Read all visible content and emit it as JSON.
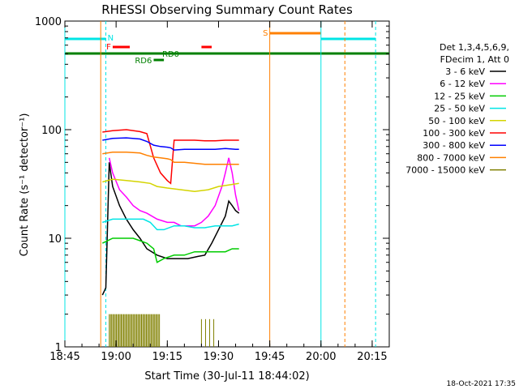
{
  "chart_data": {
    "type": "line",
    "title": "RHESSI Observing Summary Count Rates",
    "xlabel": "Start Time (30-Jul-11 18:44:02)",
    "ylabel": "Count Rate (s⁻¹ detector⁻¹)",
    "yscale": "log",
    "ylim": [
      1,
      1000
    ],
    "xlim_minutes": [
      0,
      95
    ],
    "x_ticks": [
      {
        "label": "18:45",
        "min": 0
      },
      {
        "label": "19:00",
        "min": 15
      },
      {
        "label": "19:15",
        "min": 30
      },
      {
        "label": "19:30",
        "min": 45
      },
      {
        "label": "19:45",
        "min": 60
      },
      {
        "label": "20:00",
        "min": 75
      },
      {
        "label": "20:15",
        "min": 90
      }
    ],
    "y_ticks": [
      {
        "label": "1",
        "value": 1
      },
      {
        "label": "10",
        "value": 10
      },
      {
        "label": "100",
        "value": 100
      },
      {
        "label": "1000",
        "value": 1000
      }
    ],
    "legend": {
      "placement": "right",
      "header": [
        "Det 1,3,4,5,6,9,",
        "FDecim 1, Att 0"
      ]
    },
    "series": [
      {
        "name": "3 - 6 keV",
        "color": "#000000",
        "points": [
          [
            11,
            3
          ],
          [
            12,
            3.5
          ],
          [
            13,
            50
          ],
          [
            14,
            30
          ],
          [
            16,
            20
          ],
          [
            18,
            15
          ],
          [
            20,
            12
          ],
          [
            22,
            10
          ],
          [
            24,
            8
          ],
          [
            27,
            7
          ],
          [
            30,
            6.5
          ],
          [
            33,
            6.5
          ],
          [
            36,
            6.5
          ],
          [
            39,
            6.8
          ],
          [
            41,
            7
          ],
          [
            43,
            9
          ],
          [
            45,
            12
          ],
          [
            47,
            16
          ],
          [
            48,
            22
          ],
          [
            49,
            20
          ],
          [
            50,
            18
          ],
          [
            51,
            17
          ]
        ]
      },
      {
        "name": "6 - 12 keV",
        "color": "#ff00ff",
        "points": [
          [
            13,
            55
          ],
          [
            14,
            40
          ],
          [
            16,
            28
          ],
          [
            18,
            24
          ],
          [
            20,
            20
          ],
          [
            22,
            18
          ],
          [
            24,
            17
          ],
          [
            27,
            15
          ],
          [
            30,
            14
          ],
          [
            32,
            14
          ],
          [
            34,
            13
          ],
          [
            36,
            13
          ],
          [
            38,
            13
          ],
          [
            40,
            14
          ],
          [
            42,
            16
          ],
          [
            44,
            20
          ],
          [
            46,
            30
          ],
          [
            47,
            40
          ],
          [
            48,
            55
          ],
          [
            49,
            40
          ],
          [
            50,
            25
          ],
          [
            51,
            18
          ]
        ]
      },
      {
        "name": "12 - 25 keV",
        "color": "#00cc00",
        "points": [
          [
            11,
            9
          ],
          [
            14,
            10
          ],
          [
            17,
            10
          ],
          [
            20,
            10
          ],
          [
            22,
            9.5
          ],
          [
            24,
            9
          ],
          [
            26,
            8
          ],
          [
            27,
            6
          ],
          [
            29,
            6.5
          ],
          [
            32,
            7
          ],
          [
            35,
            7
          ],
          [
            38,
            7.5
          ],
          [
            41,
            7.5
          ],
          [
            44,
            7.5
          ],
          [
            47,
            7.5
          ],
          [
            49,
            8
          ],
          [
            51,
            8
          ]
        ]
      },
      {
        "name": "25 - 50 keV",
        "color": "#00e5e5",
        "points": [
          [
            11,
            14
          ],
          [
            14,
            15
          ],
          [
            17,
            15
          ],
          [
            20,
            15
          ],
          [
            23,
            15
          ],
          [
            25,
            14
          ],
          [
            27,
            12
          ],
          [
            29,
            12
          ],
          [
            32,
            13
          ],
          [
            35,
            13
          ],
          [
            38,
            12.5
          ],
          [
            41,
            12.5
          ],
          [
            44,
            13
          ],
          [
            47,
            13
          ],
          [
            49,
            13
          ],
          [
            51,
            13.5
          ]
        ]
      },
      {
        "name": "50 - 100 keV",
        "color": "#d4d400",
        "points": [
          [
            11,
            33
          ],
          [
            14,
            35
          ],
          [
            18,
            34
          ],
          [
            22,
            33
          ],
          [
            25,
            32
          ],
          [
            27,
            30
          ],
          [
            30,
            29
          ],
          [
            34,
            28
          ],
          [
            38,
            27
          ],
          [
            42,
            28
          ],
          [
            45,
            30
          ],
          [
            48,
            31
          ],
          [
            51,
            32
          ]
        ]
      },
      {
        "name": "100 - 300 keV",
        "color": "#ff0000",
        "points": [
          [
            11,
            95
          ],
          [
            14,
            98
          ],
          [
            18,
            100
          ],
          [
            22,
            96
          ],
          [
            24,
            92
          ],
          [
            26,
            55
          ],
          [
            28,
            40
          ],
          [
            30,
            34
          ],
          [
            31,
            32
          ],
          [
            32,
            80
          ],
          [
            35,
            80
          ],
          [
            38,
            80
          ],
          [
            41,
            79
          ],
          [
            44,
            79
          ],
          [
            47,
            80
          ],
          [
            50,
            80
          ],
          [
            51,
            80
          ]
        ]
      },
      {
        "name": "300 - 800 keV",
        "color": "#0000ff",
        "points": [
          [
            11,
            80
          ],
          [
            14,
            83
          ],
          [
            18,
            84
          ],
          [
            22,
            82
          ],
          [
            24,
            78
          ],
          [
            26,
            72
          ],
          [
            28,
            70
          ],
          [
            30,
            69
          ],
          [
            31,
            68
          ],
          [
            32,
            65
          ],
          [
            35,
            66
          ],
          [
            38,
            66
          ],
          [
            41,
            66
          ],
          [
            44,
            66
          ],
          [
            47,
            67
          ],
          [
            50,
            66
          ],
          [
            51,
            66
          ]
        ]
      },
      {
        "name": "800 - 7000 keV",
        "color": "#ff8000",
        "points": [
          [
            11,
            60
          ],
          [
            14,
            62
          ],
          [
            18,
            62
          ],
          [
            22,
            61
          ],
          [
            24,
            58
          ],
          [
            26,
            56
          ],
          [
            28,
            55
          ],
          [
            30,
            54
          ],
          [
            31,
            53
          ],
          [
            32,
            50
          ],
          [
            35,
            50
          ],
          [
            38,
            49
          ],
          [
            41,
            48
          ],
          [
            44,
            48
          ],
          [
            47,
            48
          ],
          [
            50,
            48
          ],
          [
            51,
            48
          ]
        ]
      },
      {
        "name": "7000 - 15000 keV",
        "color": "#808000",
        "points": []
      }
    ],
    "annotations": [
      {
        "label": "N",
        "color": "#00e5e5"
      },
      {
        "label": "F",
        "color": "#ff0000"
      },
      {
        "label": "S",
        "color": "#ff8000"
      },
      {
        "label": "RD0",
        "color": "#008000"
      },
      {
        "label": "RD6",
        "color": "#008000"
      }
    ]
  },
  "footer": {
    "timestamp": "18-Oct-2021 17:35"
  }
}
